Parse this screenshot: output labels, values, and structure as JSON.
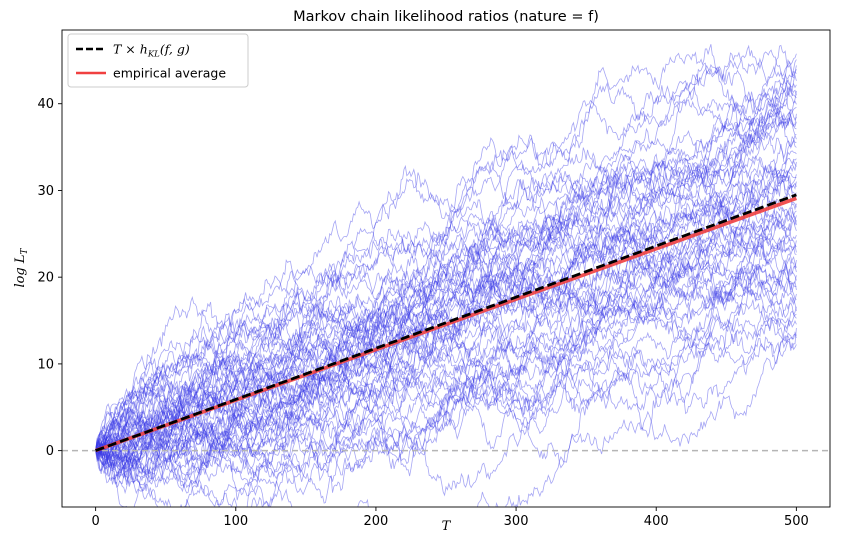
{
  "chart_data": {
    "type": "line",
    "title": "Markov chain likelihood ratios (nature = f)",
    "xlabel": "T",
    "ylabel": "log L_T",
    "xlim": [
      -24,
      524
    ],
    "ylim": [
      -6.5,
      48.5
    ],
    "xticks": [
      0,
      100,
      200,
      300,
      400,
      500
    ],
    "yticks": [
      0,
      10,
      20,
      30,
      40
    ],
    "grid": false,
    "legend_position": "top-left",
    "reference_line": {
      "y": 0,
      "style": "dashed",
      "color": "#b5b5b5"
    },
    "simulated_paths": {
      "count": 60,
      "length": 500,
      "color": "#3a3ae6",
      "start_value": 0,
      "final_value_range": [
        12,
        46
      ]
    },
    "series": [
      {
        "name": "T × h_KL(f, g)",
        "style": "dashed",
        "color": "#000000",
        "x": [
          0,
          500
        ],
        "y": [
          0,
          29.5
        ]
      },
      {
        "name": "empirical average",
        "style": "solid",
        "color": "#f04040",
        "x": [
          0,
          500
        ],
        "y": [
          0,
          29.1
        ]
      }
    ],
    "legend": {
      "items": [
        {
          "math": "T × h",
          "sub": "KL",
          "suffix": "(f, g)"
        },
        {
          "label": "empirical average"
        }
      ]
    },
    "ylabel_parts": {
      "main": "log L",
      "sub": "T"
    }
  }
}
